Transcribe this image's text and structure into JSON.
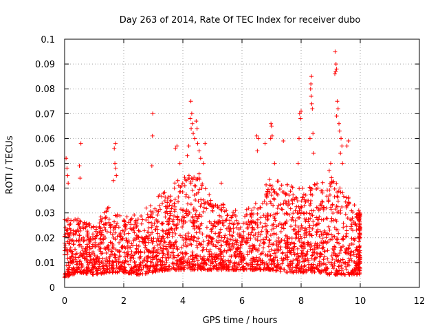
{
  "chart_data": {
    "type": "scatter",
    "title": "Day 263 of 2014, Rate Of TEC Index for receiver dubo",
    "xlabel": "GPS time / hours",
    "ylabel": "ROTI / TECUs",
    "xlim": [
      0,
      12
    ],
    "ylim": [
      0,
      0.1
    ],
    "xticks": [
      "0",
      "2",
      "4",
      "6",
      "8",
      "10",
      "12"
    ],
    "xtick_values": [
      0,
      2,
      4,
      6,
      8,
      10,
      12
    ],
    "yticks": [
      "0",
      "0.01",
      "0.02",
      "0.03",
      "0.04",
      "0.05",
      "0.06",
      "0.07",
      "0.08",
      "0.09",
      "0.1"
    ],
    "ytick_values": [
      0,
      0.01,
      0.02,
      0.03,
      0.04,
      0.05,
      0.06,
      0.07,
      0.08,
      0.09,
      0.1
    ],
    "grid": true,
    "marker": "+",
    "color": "#ff0000",
    "series": [
      {
        "name": "ROTI",
        "note": "dense point cloud from 0 to 10 h, baseline ~0.005–0.03 TECU; outliers listed explicitly, background density described by envelope",
        "outliers": [
          {
            "x": 0.05,
            "y": 0.052
          },
          {
            "x": 0.08,
            "y": 0.048
          },
          {
            "x": 0.1,
            "y": 0.045
          },
          {
            "x": 0.12,
            "y": 0.042
          },
          {
            "x": 0.55,
            "y": 0.058
          },
          {
            "x": 0.5,
            "y": 0.049
          },
          {
            "x": 0.52,
            "y": 0.044
          },
          {
            "x": 1.72,
            "y": 0.058
          },
          {
            "x": 1.68,
            "y": 0.056
          },
          {
            "x": 1.7,
            "y": 0.05
          },
          {
            "x": 1.73,
            "y": 0.048
          },
          {
            "x": 1.75,
            "y": 0.045
          },
          {
            "x": 1.65,
            "y": 0.043
          },
          {
            "x": 2.98,
            "y": 0.07
          },
          {
            "x": 2.97,
            "y": 0.061
          },
          {
            "x": 2.95,
            "y": 0.049
          },
          {
            "x": 3.8,
            "y": 0.057
          },
          {
            "x": 3.75,
            "y": 0.056
          },
          {
            "x": 3.9,
            "y": 0.05
          },
          {
            "x": 4.27,
            "y": 0.075
          },
          {
            "x": 4.3,
            "y": 0.07
          },
          {
            "x": 4.25,
            "y": 0.068
          },
          {
            "x": 4.32,
            "y": 0.066
          },
          {
            "x": 4.28,
            "y": 0.064
          },
          {
            "x": 4.35,
            "y": 0.062
          },
          {
            "x": 4.45,
            "y": 0.067
          },
          {
            "x": 4.48,
            "y": 0.064
          },
          {
            "x": 4.4,
            "y": 0.06
          },
          {
            "x": 4.5,
            "y": 0.058
          },
          {
            "x": 4.55,
            "y": 0.055
          },
          {
            "x": 4.6,
            "y": 0.052
          },
          {
            "x": 4.7,
            "y": 0.05
          },
          {
            "x": 4.75,
            "y": 0.058
          },
          {
            "x": 4.2,
            "y": 0.057
          },
          {
            "x": 4.15,
            "y": 0.053
          },
          {
            "x": 5.3,
            "y": 0.042
          },
          {
            "x": 6.5,
            "y": 0.061
          },
          {
            "x": 6.55,
            "y": 0.06
          },
          {
            "x": 6.52,
            "y": 0.055
          },
          {
            "x": 6.78,
            "y": 0.058
          },
          {
            "x": 6.98,
            "y": 0.066
          },
          {
            "x": 7.0,
            "y": 0.065
          },
          {
            "x": 7.02,
            "y": 0.061
          },
          {
            "x": 6.97,
            "y": 0.06
          },
          {
            "x": 7.4,
            "y": 0.059
          },
          {
            "x": 7.1,
            "y": 0.05
          },
          {
            "x": 7.95,
            "y": 0.07
          },
          {
            "x": 7.98,
            "y": 0.068
          },
          {
            "x": 8.0,
            "y": 0.071
          },
          {
            "x": 7.93,
            "y": 0.06
          },
          {
            "x": 7.9,
            "y": 0.05
          },
          {
            "x": 8.35,
            "y": 0.085
          },
          {
            "x": 8.33,
            "y": 0.082
          },
          {
            "x": 8.32,
            "y": 0.08
          },
          {
            "x": 8.34,
            "y": 0.077
          },
          {
            "x": 8.36,
            "y": 0.074
          },
          {
            "x": 8.38,
            "y": 0.072
          },
          {
            "x": 8.3,
            "y": 0.06
          },
          {
            "x": 8.4,
            "y": 0.062
          },
          {
            "x": 8.42,
            "y": 0.054
          },
          {
            "x": 9.15,
            "y": 0.095
          },
          {
            "x": 9.18,
            "y": 0.09
          },
          {
            "x": 9.2,
            "y": 0.088
          },
          {
            "x": 9.17,
            "y": 0.087
          },
          {
            "x": 9.14,
            "y": 0.086
          },
          {
            "x": 9.22,
            "y": 0.075
          },
          {
            "x": 9.25,
            "y": 0.072
          },
          {
            "x": 9.2,
            "y": 0.069
          },
          {
            "x": 9.28,
            "y": 0.066
          },
          {
            "x": 9.3,
            "y": 0.063
          },
          {
            "x": 9.35,
            "y": 0.06
          },
          {
            "x": 9.38,
            "y": 0.057
          },
          {
            "x": 9.33,
            "y": 0.054
          },
          {
            "x": 9.4,
            "y": 0.05
          },
          {
            "x": 9.6,
            "y": 0.059
          },
          {
            "x": 9.55,
            "y": 0.057
          },
          {
            "x": 9.0,
            "y": 0.05
          },
          {
            "x": 8.95,
            "y": 0.047
          }
        ],
        "envelope": [
          {
            "x": 0.0,
            "low": 0.004,
            "high": 0.028
          },
          {
            "x": 0.5,
            "low": 0.006,
            "high": 0.028
          },
          {
            "x": 1.0,
            "low": 0.005,
            "high": 0.025
          },
          {
            "x": 1.5,
            "low": 0.006,
            "high": 0.033
          },
          {
            "x": 2.0,
            "low": 0.006,
            "high": 0.028
          },
          {
            "x": 2.5,
            "low": 0.005,
            "high": 0.03
          },
          {
            "x": 3.0,
            "low": 0.006,
            "high": 0.035
          },
          {
            "x": 3.5,
            "low": 0.007,
            "high": 0.04
          },
          {
            "x": 4.0,
            "low": 0.007,
            "high": 0.045
          },
          {
            "x": 4.5,
            "low": 0.007,
            "high": 0.048
          },
          {
            "x": 5.0,
            "low": 0.007,
            "high": 0.035
          },
          {
            "x": 5.5,
            "low": 0.007,
            "high": 0.033
          },
          {
            "x": 6.0,
            "low": 0.007,
            "high": 0.03
          },
          {
            "x": 6.5,
            "low": 0.007,
            "high": 0.035
          },
          {
            "x": 7.0,
            "low": 0.007,
            "high": 0.045
          },
          {
            "x": 7.5,
            "low": 0.006,
            "high": 0.042
          },
          {
            "x": 8.0,
            "low": 0.006,
            "high": 0.04
          },
          {
            "x": 8.5,
            "low": 0.006,
            "high": 0.042
          },
          {
            "x": 9.0,
            "low": 0.005,
            "high": 0.045
          },
          {
            "x": 9.5,
            "low": 0.005,
            "high": 0.038
          },
          {
            "x": 10.0,
            "low": 0.005,
            "high": 0.032
          }
        ],
        "baseline_range": [
          0.005,
          0.03
        ],
        "time_range_hours": [
          0,
          10
        ]
      }
    ]
  }
}
